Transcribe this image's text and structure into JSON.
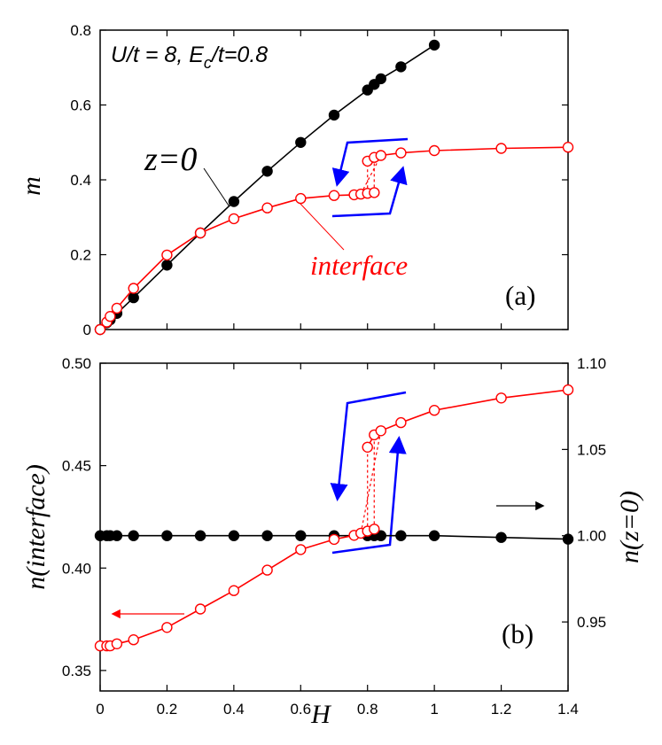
{
  "chart_data": [
    {
      "type": "line",
      "panel_label": "(a)",
      "annotation": {
        "main": "U/t = 8, E",
        "sub": "c",
        "rest": "/t=0.8"
      },
      "xlim": [
        0,
        1.4
      ],
      "ylim": [
        0,
        0.8
      ],
      "xlabel": "",
      "ylabel": "m",
      "yticks": [
        "0",
        "0.2",
        "0.4",
        "0.6",
        "0.8"
      ],
      "series": [
        {
          "name": "z=0",
          "color": "#000000",
          "marker": "filled-circle",
          "x": [
            0,
            0.02,
            0.03,
            0.05,
            0.1,
            0.2,
            0.3,
            0.4,
            0.5,
            0.6,
            0.7,
            0.8,
            0.82,
            0.84,
            0.9,
            1.0
          ],
          "y": [
            0,
            0.018,
            0.026,
            0.043,
            0.085,
            0.172,
            0.258,
            0.342,
            0.423,
            0.5,
            0.573,
            0.64,
            0.655,
            0.67,
            0.702,
            0.76
          ]
        },
        {
          "name": "interface",
          "color": "#ff0000",
          "marker": "open-circle",
          "x": [
            0,
            0.02,
            0.03,
            0.05,
            0.1,
            0.2,
            0.3,
            0.4,
            0.5,
            0.6,
            0.7,
            0.76,
            0.78,
            0.8,
            0.82,
            0.8,
            0.82,
            0.84,
            0.9,
            1.0,
            1.2,
            1.4
          ],
          "y": [
            0,
            0.02,
            0.035,
            0.057,
            0.11,
            0.199,
            0.258,
            0.296,
            0.325,
            0.35,
            0.358,
            0.36,
            0.362,
            0.364,
            0.366,
            0.45,
            0.46,
            0.465,
            0.472,
            0.478,
            0.484,
            0.487
          ],
          "segments": [
            [
              0,
              15
            ],
            [
              15,
              22
            ]
          ],
          "dashed_links": [
            [
              0.8,
              0.364,
              0.8,
              0.45
            ],
            [
              0.82,
              0.366,
              0.82,
              0.46
            ],
            [
              0.78,
              0.362,
              0.84,
              0.465
            ]
          ]
        }
      ]
    },
    {
      "type": "line",
      "panel_label": "(b)",
      "xlim": [
        0,
        1.4
      ],
      "ylim": [
        0.34,
        0.5
      ],
      "y2lim": [
        0.91,
        1.1
      ],
      "xlabel": "H",
      "ylabel": "n(interface)",
      "y2label": "n(z=0)",
      "xticks": [
        "0",
        "0.2",
        "0.4",
        "0.6",
        "0.8",
        "1",
        "1.2",
        "1.4"
      ],
      "yticks": [
        "0.35",
        "0.40",
        "0.45",
        "0.50"
      ],
      "y2ticks": [
        "0.95",
        "1.00",
        "1.05",
        "1.10"
      ],
      "series": [
        {
          "name": "n(interface)",
          "color": "#ff0000",
          "marker": "open-circle",
          "axis": "left",
          "x": [
            0,
            0.02,
            0.03,
            0.05,
            0.1,
            0.2,
            0.3,
            0.4,
            0.5,
            0.6,
            0.7,
            0.76,
            0.78,
            0.8,
            0.82,
            0.8,
            0.82,
            0.84,
            0.9,
            1.0,
            1.2,
            1.4
          ],
          "y": [
            0.362,
            0.362,
            0.362,
            0.363,
            0.365,
            0.371,
            0.38,
            0.389,
            0.399,
            0.409,
            0.414,
            0.416,
            0.417,
            0.418,
            0.419,
            0.459,
            0.465,
            0.467,
            0.471,
            0.477,
            0.483,
            0.487
          ],
          "segments": [
            [
              0,
              15
            ],
            [
              15,
              22
            ]
          ],
          "dashed_links": [
            [
              0.8,
              0.418,
              0.8,
              0.459
            ],
            [
              0.82,
              0.419,
              0.82,
              0.465
            ],
            [
              0.78,
              0.417,
              0.84,
              0.467
            ]
          ]
        },
        {
          "name": "n(z=0)",
          "color": "#000000",
          "marker": "filled-circle",
          "axis": "right",
          "x": [
            0,
            0.02,
            0.03,
            0.05,
            0.1,
            0.2,
            0.3,
            0.4,
            0.5,
            0.6,
            0.7,
            0.8,
            0.82,
            0.84,
            0.9,
            1.0,
            1.2,
            1.4
          ],
          "y": [
            1.0,
            1.0,
            1.0,
            1.0,
            1.0,
            1.0,
            1.0,
            1.0,
            1.0,
            1.0,
            1.0,
            1.0,
            1.0,
            1.0,
            1.0,
            1.0,
            0.999,
            0.998
          ]
        }
      ]
    }
  ],
  "colors": {
    "hysteresis_arrow": "#0000ff",
    "axis": "#000000"
  }
}
